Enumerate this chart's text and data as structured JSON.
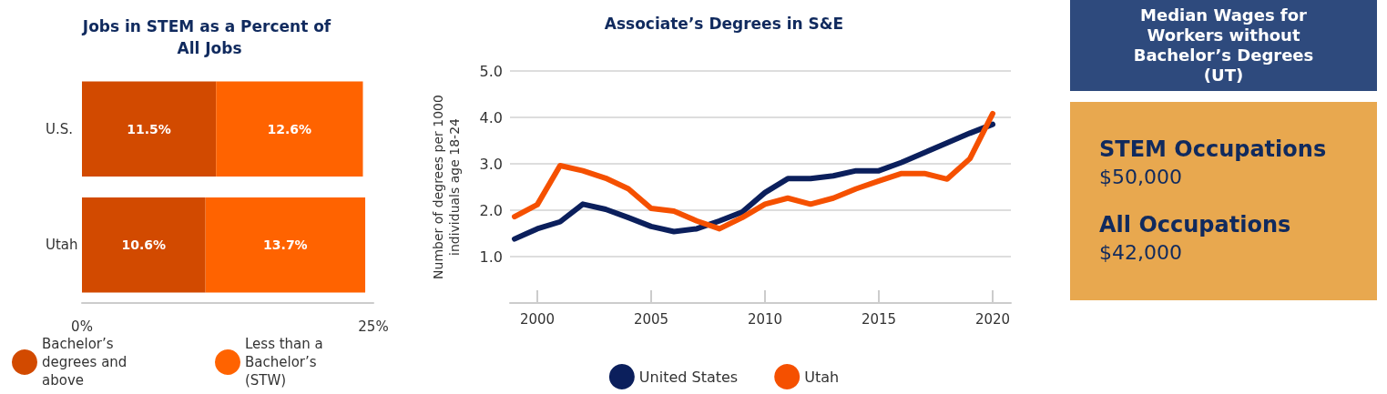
{
  "chart_data": [
    {
      "type": "bar",
      "orientation": "horizontal",
      "stacked": true,
      "title": "Jobs in STEM as a Percent of All Jobs",
      "categories": [
        "U.S.",
        "Utah"
      ],
      "series": [
        {
          "name": "Bachelor’s degrees and above",
          "color": "#d24a00",
          "values": [
            11.5,
            10.6
          ],
          "value_labels": [
            "11.5%",
            "10.6%"
          ]
        },
        {
          "name": "Less than a Bachelor’s (STW)",
          "color": "#ff6300",
          "values": [
            12.6,
            13.7
          ],
          "value_labels": [
            "12.6%",
            "13.7%"
          ]
        }
      ],
      "xlim": [
        0,
        25
      ],
      "xticks": [
        {
          "value": 0,
          "label": "0%"
        },
        {
          "value": 25,
          "label": "25%"
        }
      ],
      "grid": false,
      "legend": "bottom"
    },
    {
      "type": "line",
      "title": "Associate’s Degrees in S&E",
      "ylabel": "Number of degrees per 1000 individuals age 18-24",
      "x": [
        1999,
        2000,
        2001,
        2002,
        2003,
        2004,
        2005,
        2006,
        2007,
        2008,
        2009,
        2010,
        2011,
        2012,
        2013,
        2014,
        2015,
        2016,
        2017,
        2018,
        2019,
        2020
      ],
      "series": [
        {
          "name": "United States",
          "color": "#0b1f5c",
          "values": [
            1.38,
            1.6,
            1.75,
            2.13,
            2.02,
            1.84,
            1.65,
            1.54,
            1.6,
            1.77,
            1.96,
            2.38,
            2.68,
            2.68,
            2.74,
            2.85,
            2.85,
            3.03,
            3.24,
            3.45,
            3.66,
            3.85
          ]
        },
        {
          "name": "Utah",
          "color": "#f55000",
          "values": [
            1.86,
            2.12,
            2.96,
            2.85,
            2.69,
            2.46,
            2.04,
            1.98,
            1.77,
            1.6,
            1.84,
            2.13,
            2.26,
            2.13,
            2.26,
            2.46,
            2.63,
            2.79,
            2.79,
            2.67,
            3.11,
            4.08
          ]
        }
      ],
      "xlim": [
        1998.8,
        2020.8
      ],
      "xticks": [
        2000,
        2005,
        2010,
        2015,
        2020
      ],
      "ylim": [
        0,
        5
      ],
      "yticks": [
        {
          "value": 1,
          "label": "1.0"
        },
        {
          "value": 2,
          "label": "2.0"
        },
        {
          "value": 3,
          "label": "3.0"
        },
        {
          "value": 4,
          "label": "4.0"
        },
        {
          "value": 5,
          "label": "5.0"
        }
      ],
      "grid": "y",
      "legend": "bottom",
      "marker": "none",
      "line_style": "solid"
    },
    {
      "type": "other",
      "title": "Median Wages for Workers without Bachelor’s Degrees (UT)",
      "annotations": [
        "STEM Occupations",
        "$50,000",
        "All Occupations",
        "$42,000"
      ]
    }
  ]
}
